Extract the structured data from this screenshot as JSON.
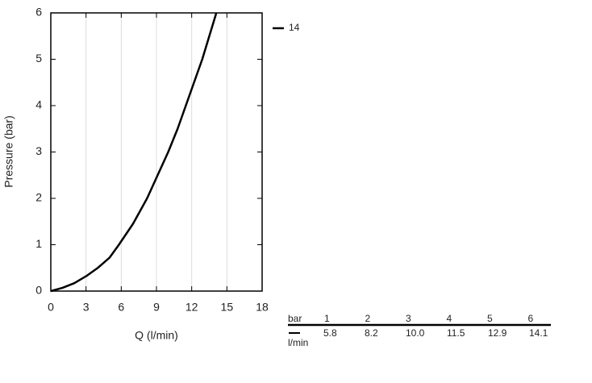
{
  "chart_data": {
    "type": "line",
    "x_label": "Q (l/min)",
    "y_label": "Pressure (bar)",
    "x": [
      0,
      1,
      2,
      3,
      4,
      5,
      5.8,
      7,
      8.2,
      9.1,
      10.0,
      10.8,
      11.5,
      12.2,
      12.9,
      13.5,
      14.1
    ],
    "series": [
      {
        "name": "14",
        "color": "#000000",
        "values": [
          0,
          0.07,
          0.17,
          0.32,
          0.5,
          0.72,
          1,
          1.45,
          2,
          2.5,
          3,
          3.5,
          4,
          4.5,
          5,
          5.5,
          6
        ]
      }
    ],
    "xlim": [
      0,
      18
    ],
    "xticks": [
      0,
      3,
      6,
      9,
      12,
      15,
      18
    ],
    "ylim": [
      0,
      6
    ],
    "yticks": [
      0,
      1,
      2,
      3,
      4,
      5,
      6
    ],
    "grid": "x",
    "legend": "top-right"
  },
  "table": {
    "row_labels": [
      "bar",
      "l/min"
    ],
    "header": [
      "1",
      "2",
      "3",
      "4",
      "5",
      "6"
    ],
    "values": [
      "5.8",
      "8.2",
      "10.0",
      "11.5",
      "12.9",
      "14.1"
    ]
  }
}
